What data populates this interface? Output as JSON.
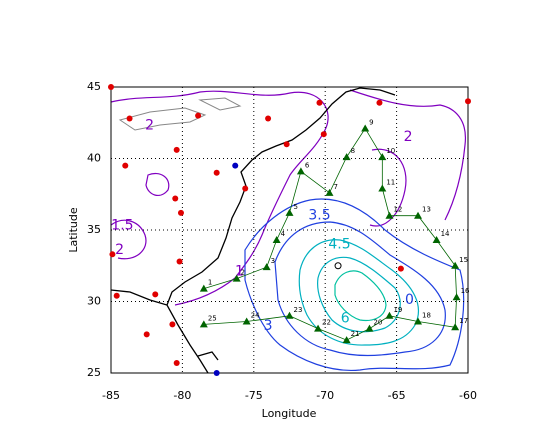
{
  "chart_data": {
    "type": "scatter",
    "xlabel": "Longitude",
    "ylabel": "Latitude",
    "xlim": [
      -85,
      -60
    ],
    "ylim": [
      25,
      45
    ],
    "xticks": [
      -85,
      -80,
      -75,
      -70,
      -65,
      -60
    ],
    "yticks": [
      25,
      30,
      35,
      40,
      45
    ],
    "grid": true,
    "series": [
      {
        "name": "stations",
        "color": "#e00000",
        "marker": "circle",
        "x": [
          -85,
          -83.7,
          -78.9,
          -74.0,
          -70.4,
          -66.2,
          -60.0,
          -84.0,
          -80.4,
          -77.6,
          -80.5,
          -80.1,
          -70.1,
          -84.9,
          -80.2,
          -84.6,
          -81.9,
          -82.5,
          -80.7,
          -80.4,
          -75.6,
          -64.7,
          -72.7
        ],
        "y": [
          45,
          42.8,
          43.0,
          42.8,
          43.9,
          43.9,
          44.0,
          39.5,
          40.6,
          39.0,
          37.2,
          36.2,
          41.7,
          33.3,
          32.8,
          30.4,
          30.5,
          27.7,
          28.4,
          25.7,
          37.9,
          32.3,
          41.0
        ]
      },
      {
        "name": "buoys",
        "color": "#0000c0",
        "marker": "circle",
        "x": [
          -76.3,
          -77.6
        ],
        "y": [
          39.5,
          25.0
        ]
      },
      {
        "name": "center",
        "color": "#000000",
        "marker": "open-circle",
        "x": [
          -69.1
        ],
        "y": [
          32.5
        ]
      },
      {
        "name": "track",
        "color": "#006400",
        "marker": "triangle",
        "line": true,
        "labels": [
          "1",
          "2",
          "3",
          "4",
          "5",
          "6",
          "7",
          "8",
          "9",
          "10",
          "11",
          "12",
          "13",
          "14",
          "15",
          "16",
          "17",
          "18",
          "19",
          "20",
          "21",
          "22",
          "23",
          "24",
          "25"
        ],
        "x": [
          -78.5,
          -76.2,
          -74.1,
          -73.4,
          -72.5,
          -71.7,
          -69.7,
          -68.5,
          -67.2,
          -66.0,
          -66.0,
          -65.5,
          -63.5,
          -62.2,
          -60.9,
          -60.8,
          -60.9,
          -63.5,
          -65.5,
          -66.9,
          -68.5,
          -70.5,
          -72.5,
          -75.5,
          -78.5
        ],
        "y": [
          30.9,
          31.6,
          32.4,
          34.3,
          36.2,
          39.1,
          37.6,
          40.1,
          42.1,
          40.1,
          37.9,
          36.0,
          36.0,
          34.3,
          32.5,
          30.3,
          28.2,
          28.6,
          29.0,
          28.1,
          27.3,
          28.1,
          29.0,
          28.6,
          28.4
        ]
      }
    ],
    "annotations": [
      {
        "text": "2",
        "x": -82.3,
        "y": 42.3,
        "color": "#8000c0"
      },
      {
        "text": "1.5",
        "x": -84.2,
        "y": 35.3,
        "color": "#8000c0"
      },
      {
        "text": "2",
        "x": -84.4,
        "y": 33.6,
        "color": "#8000c0"
      },
      {
        "text": "1",
        "x": -76.0,
        "y": 32.1,
        "color": "#8000c0"
      },
      {
        "text": "2",
        "x": -64.2,
        "y": 41.5,
        "color": "#8000c0"
      },
      {
        "text": "3.5",
        "x": -70.4,
        "y": 36.0,
        "color": "#2040e0"
      },
      {
        "text": "3",
        "x": -74.0,
        "y": 28.3,
        "color": "#2040e0"
      },
      {
        "text": "0",
        "x": -64.1,
        "y": 30.1,
        "color": "#2040e0"
      },
      {
        "text": "4.5",
        "x": -69.0,
        "y": 34.0,
        "color": "#00b0c0"
      },
      {
        "text": "6",
        "x": -68.6,
        "y": 28.8,
        "color": "#00b0c0"
      }
    ]
  }
}
